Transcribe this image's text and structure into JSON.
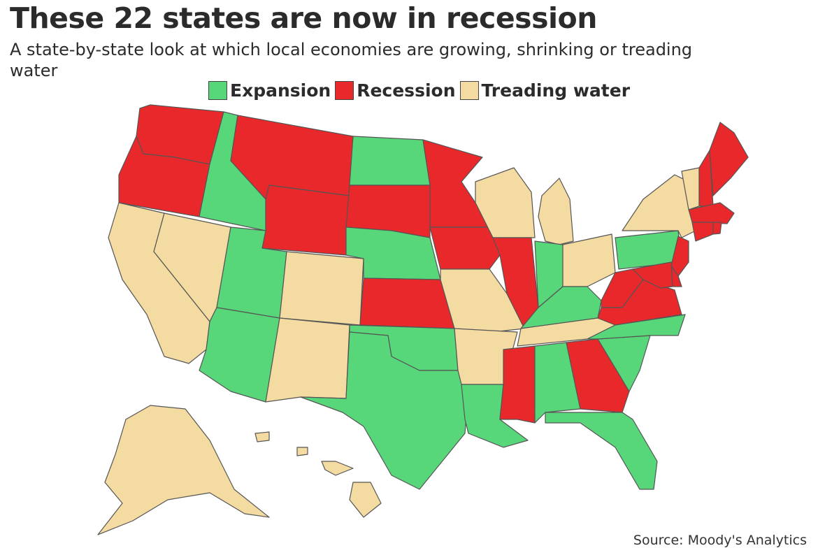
{
  "title": "These 22 states are now in recession",
  "subtitle": "A state-by-state look at which local economies are growing, shrinking or treading water",
  "legend": [
    {
      "label": "Expansion",
      "color": "#57d67a"
    },
    {
      "label": "Recession",
      "color": "#e8282a"
    },
    {
      "label": "Treading water",
      "color": "#f3dba2"
    }
  ],
  "source": "Source: Moody's Analytics",
  "chart_data": {
    "type": "choropleth",
    "categories": [
      "Expansion",
      "Recession",
      "Treading water"
    ],
    "states": {
      "WA": "Recession",
      "OR": "Recession",
      "MT": "Recession",
      "WY": "Recession",
      "SD": "Recession",
      "MN": "Recession",
      "IA": "Recession",
      "KS": "Recession",
      "IL": "Recession",
      "MS": "Recession",
      "GA": "Recession",
      "WV": "Recession",
      "VA": "Recession",
      "MD": "Recession",
      "DE": "Recession",
      "NJ": "Recession",
      "CT": "Recession",
      "RI": "Recession",
      "MA": "Recession",
      "NH": "Recession",
      "ME": "Recession",
      "DC": "Recession",
      "ID": "Expansion",
      "UT": "Expansion",
      "AZ": "Expansion",
      "ND": "Expansion",
      "NE": "Expansion",
      "OK": "Expansion",
      "TX": "Expansion",
      "LA": "Expansion",
      "IN": "Expansion",
      "KY": "Expansion",
      "AL": "Expansion",
      "FL": "Expansion",
      "SC": "Expansion",
      "NC": "Expansion",
      "PA": "Expansion",
      "CA": "Treading water",
      "NV": "Treading water",
      "CO": "Treading water",
      "NM": "Treading water",
      "MO": "Treading water",
      "AR": "Treading water",
      "WI": "Treading water",
      "MI": "Treading water",
      "OH": "Treading water",
      "TN": "Treading water",
      "NY": "Treading water",
      "VT": "Treading water",
      "AK": "Treading water",
      "HI": "Treading water"
    }
  }
}
